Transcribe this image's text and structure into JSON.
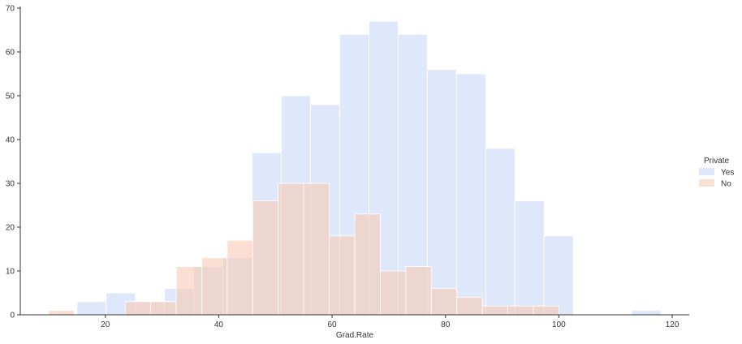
{
  "chart_data": {
    "type": "bar",
    "subtype": "overlapping histogram",
    "xlabel": "Grad.Rate",
    "ylabel": "",
    "xlim": [
      5,
      123
    ],
    "ylim": [
      0,
      70
    ],
    "xticks": [
      20,
      40,
      60,
      80,
      100,
      120
    ],
    "yticks": [
      0,
      10,
      20,
      30,
      40,
      50,
      60,
      70
    ],
    "grid": false,
    "legend": {
      "title": "Private",
      "placement": "right"
    },
    "series": [
      {
        "name": "Yes",
        "color": "#c9d8f7",
        "opacity": 0.6,
        "bin_edges": [
          15.0,
          20.15,
          25.3,
          30.45,
          35.6,
          40.75,
          45.9,
          51.05,
          56.2,
          61.35,
          66.5,
          71.65,
          76.8,
          81.95,
          87.1,
          92.25,
          97.4,
          102.55,
          107.7,
          112.85,
          118.0
        ],
        "counts": [
          3,
          5,
          3,
          6,
          11,
          13,
          37,
          50,
          48,
          64,
          67,
          64,
          56,
          55,
          38,
          26,
          18,
          0,
          0,
          1
        ]
      },
      {
        "name": "No",
        "color": "#f7c9b4",
        "opacity": 0.6,
        "bin_edges": [
          10.0,
          14.5,
          19.0,
          23.5,
          28.0,
          32.5,
          37.0,
          41.5,
          46.0,
          50.5,
          55.0,
          59.5,
          64.0,
          68.5,
          73.0,
          77.5,
          82.0,
          86.5,
          91.0,
          95.5,
          100.0
        ],
        "counts": [
          1,
          0,
          0,
          3,
          3,
          11,
          13,
          17,
          26,
          30,
          30,
          18,
          23,
          10,
          11,
          6,
          4,
          2,
          2,
          2
        ]
      }
    ]
  }
}
